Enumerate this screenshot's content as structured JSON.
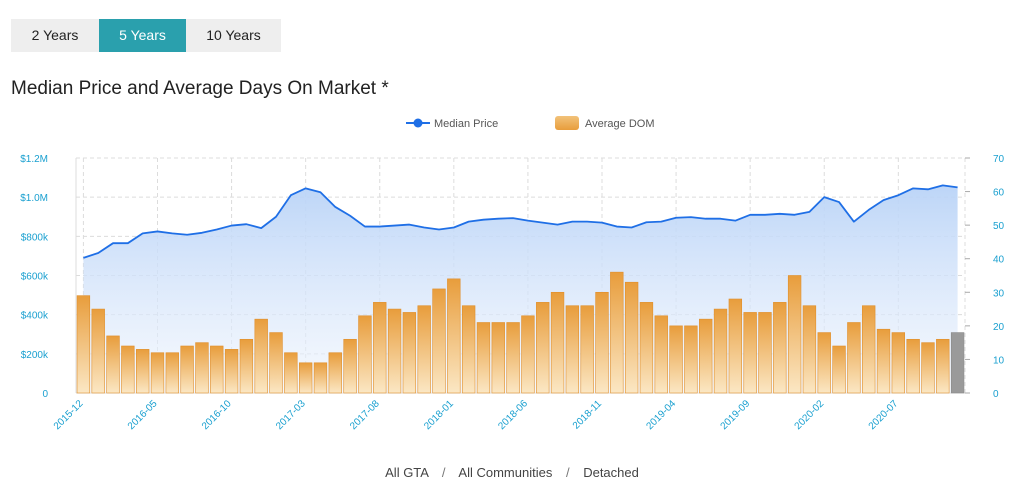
{
  "tabs": [
    {
      "label": "2 Years",
      "active": false
    },
    {
      "label": "5 Years",
      "active": true
    },
    {
      "label": "10 Years",
      "active": false
    }
  ],
  "title": "Median Price and Average Days On Market *",
  "breadcrumb": {
    "a": "All GTA",
    "b": "All Communities",
    "c": "Detached",
    "sep": "/"
  },
  "colors": {
    "line": "#1f6fe6",
    "bar_top": "#e8a245",
    "bar_bottom": "#fbe9c9",
    "area": "#c9ddfa",
    "last_bar": "#9a9a9a",
    "tick": "#1aa0d0"
  },
  "chart_data": {
    "type": "bar+line",
    "legend": [
      "Median Price",
      "Average DOM"
    ],
    "legend_position": "top-center",
    "x_tick_labels": [
      "2015-12",
      "2016-05",
      "2016-10",
      "2017-03",
      "2017-08",
      "2018-01",
      "2018-06",
      "2018-11",
      "2019-04",
      "2019-09",
      "2020-02",
      "2020-07"
    ],
    "y_left_ticks": [
      "0",
      "$200k",
      "$400k",
      "$600k",
      "$800k",
      "$1.0M",
      "$1.2M"
    ],
    "y_left_range": [
      0,
      1200000
    ],
    "y_right_ticks": [
      "0",
      "10",
      "20",
      "30",
      "40",
      "50",
      "60",
      "70"
    ],
    "y_right_range": [
      0,
      70
    ],
    "start_month": "2015-12",
    "series": [
      {
        "name": "Median Price",
        "type": "line",
        "axis": "left",
        "values": [
          690000,
          715000,
          765000,
          765000,
          815000,
          825000,
          815000,
          808000,
          818000,
          835000,
          855000,
          862000,
          842000,
          900000,
          1010000,
          1045000,
          1025000,
          950000,
          905000,
          850000,
          850000,
          855000,
          860000,
          845000,
          835000,
          845000,
          875000,
          885000,
          890000,
          893000,
          880000,
          870000,
          860000,
          875000,
          875000,
          870000,
          850000,
          845000,
          872000,
          875000,
          895000,
          898000,
          890000,
          890000,
          880000,
          910000,
          910000,
          915000,
          910000,
          925000,
          1000000,
          975000,
          875000,
          935000,
          985000,
          1010000,
          1045000,
          1040000,
          1060000,
          1050000
        ]
      },
      {
        "name": "Average DOM",
        "type": "bar",
        "axis": "right",
        "values": [
          29,
          25,
          17,
          14,
          13,
          12,
          12,
          14,
          15,
          14,
          13,
          16,
          22,
          18,
          12,
          9,
          9,
          12,
          16,
          23,
          27,
          25,
          24,
          26,
          31,
          34,
          26,
          21,
          21,
          21,
          23,
          27,
          30,
          26,
          26,
          30,
          36,
          33,
          27,
          23,
          20,
          20,
          22,
          25,
          28,
          24,
          24,
          27,
          35,
          26,
          18,
          14,
          21,
          26,
          19,
          18,
          16,
          15,
          16,
          18
        ]
      }
    ]
  }
}
